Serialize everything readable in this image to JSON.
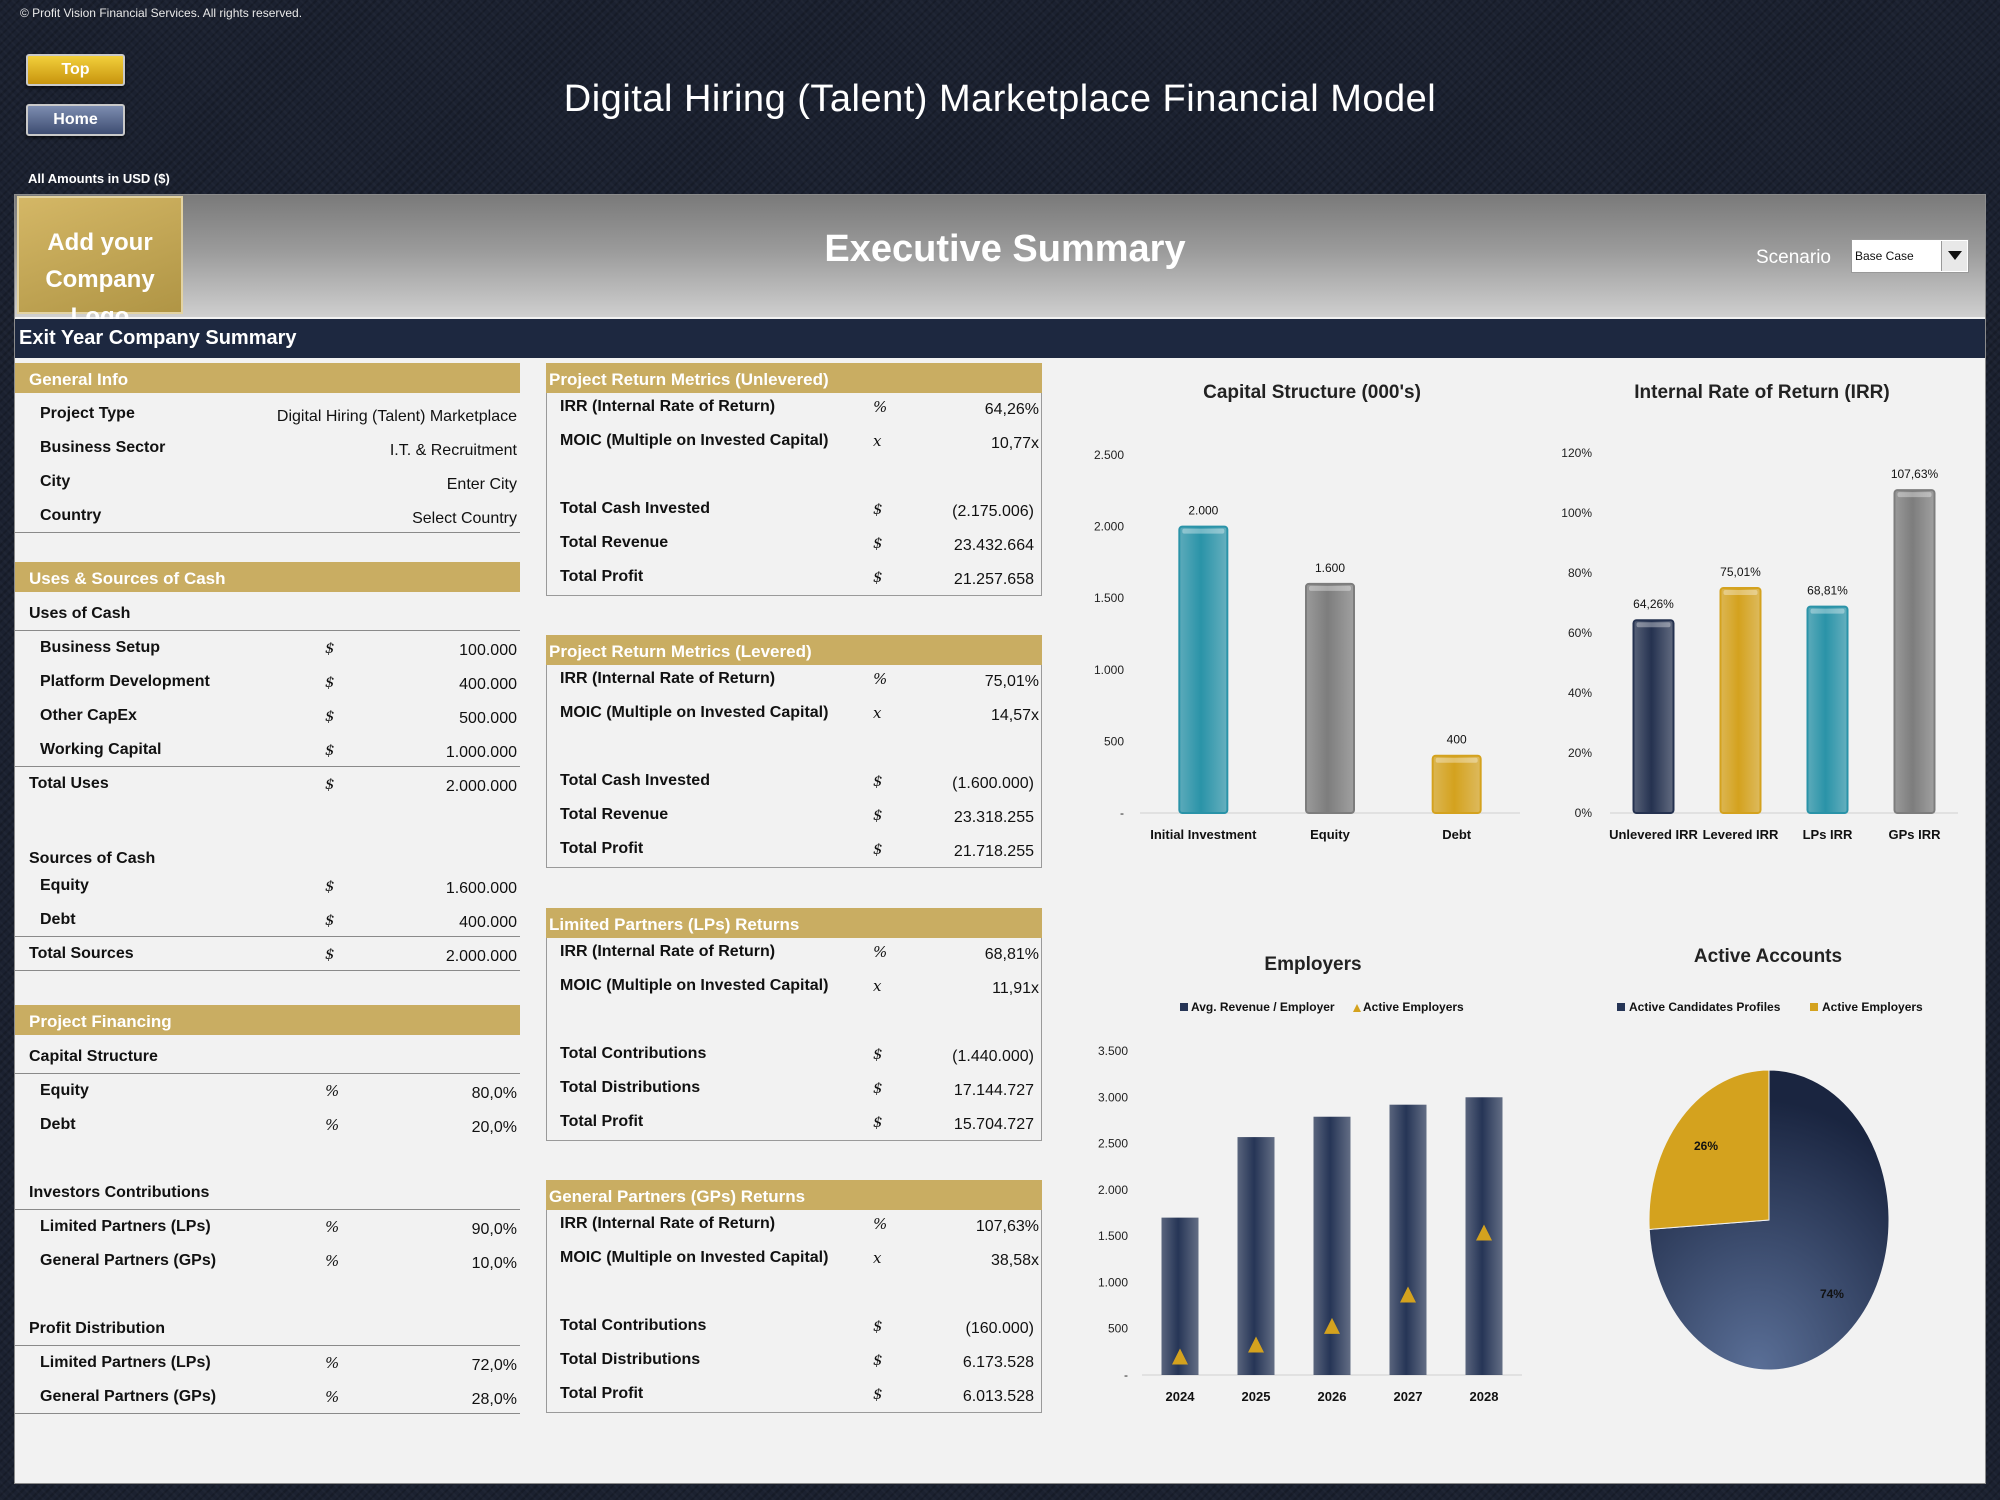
{
  "copyright": "© Profit Vision Financial Services. All rights reserved.",
  "nav": {
    "top_label": "Top",
    "home_label": "Home"
  },
  "title": "Digital Hiring (Talent) Marketplace Financial Model",
  "currency_note": "All Amounts in  USD ($)",
  "logo_text": [
    "Add your",
    "Company Logo"
  ],
  "section_title": "Executive Summary",
  "scenario": {
    "label": "Scenario",
    "value": "Base Case"
  },
  "exit_bar": "Exit Year Company Summary",
  "general_info": {
    "heading": "General Info",
    "rows": [
      {
        "label": "Project Type",
        "value": "Digital Hiring (Talent) Marketplace"
      },
      {
        "label": "Business Sector",
        "value": "I.T. & Recruitment"
      },
      {
        "label": "City",
        "value": "Enter City"
      },
      {
        "label": "Country",
        "value": "Select Country"
      }
    ]
  },
  "uses_sources": {
    "heading": "Uses & Sources of Cash",
    "uses_heading": "Uses of Cash",
    "uses": [
      {
        "label": "Business Setup",
        "unit": "$",
        "value": "100.000"
      },
      {
        "label": "Platform Development",
        "unit": "$",
        "value": "400.000"
      },
      {
        "label": "Other CapEx",
        "unit": "$",
        "value": "500.000"
      },
      {
        "label": "Working Capital",
        "unit": "$",
        "value": "1.000.000"
      }
    ],
    "total_uses": {
      "label": "Total Uses",
      "unit": "$",
      "value": "2.000.000"
    },
    "sources_heading": "Sources of Cash",
    "sources": [
      {
        "label": "Equity",
        "unit": "$",
        "value": "1.600.000"
      },
      {
        "label": "Debt",
        "unit": "$",
        "value": "400.000"
      }
    ],
    "total_sources": {
      "label": "Total Sources",
      "unit": "$",
      "value": "2.000.000"
    }
  },
  "project_financing": {
    "heading": "Project Financing",
    "capital_structure_heading": "Capital Structure",
    "capital_structure": [
      {
        "label": "Equity",
        "unit": "%",
        "value": "80,0%"
      },
      {
        "label": "Debt",
        "unit": "%",
        "value": "20,0%"
      }
    ],
    "investors_heading": "Investors Contributions",
    "investors": [
      {
        "label": "Limited Partners (LPs)",
        "unit": "%",
        "value": "90,0%"
      },
      {
        "label": "General Partners (GPs)",
        "unit": "%",
        "value": "10,0%"
      }
    ],
    "profit_heading": "Profit Distribution",
    "profit": [
      {
        "label": "Limited Partners (LPs)",
        "unit": "%",
        "value": "72,0%"
      },
      {
        "label": "General Partners (GPs)",
        "unit": "%",
        "value": "28,0%"
      }
    ]
  },
  "metrics": [
    {
      "heading": "Project Return Metrics (Unlevered)",
      "top": [
        {
          "label": "IRR (Internal Rate of Return)",
          "unit": "%",
          "value": "64,26%"
        },
        {
          "label": "MOIC (Multiple on Invested Capital)",
          "unit": "x",
          "value": "10,77x"
        }
      ],
      "bottom": [
        {
          "label": "Total Cash Invested",
          "unit": "$",
          "value": "(2.175.006)"
        },
        {
          "label": "Total Revenue",
          "unit": "$",
          "value": "23.432.664"
        },
        {
          "label": "Total Profit",
          "unit": "$",
          "value": "21.257.658"
        }
      ]
    },
    {
      "heading": "Project Return Metrics (Levered)",
      "top": [
        {
          "label": "IRR (Internal Rate of Return)",
          "unit": "%",
          "value": "75,01%"
        },
        {
          "label": "MOIC (Multiple on Invested Capital)",
          "unit": "x",
          "value": "14,57x"
        }
      ],
      "bottom": [
        {
          "label": "Total Cash Invested",
          "unit": "$",
          "value": "(1.600.000)"
        },
        {
          "label": "Total Revenue",
          "unit": "$",
          "value": "23.318.255"
        },
        {
          "label": "Total Profit",
          "unit": "$",
          "value": "21.718.255"
        }
      ]
    },
    {
      "heading": "Limited Partners (LPs) Returns",
      "top": [
        {
          "label": "IRR (Internal Rate of Return)",
          "unit": "%",
          "value": "68,81%"
        },
        {
          "label": "MOIC (Multiple on Invested Capital)",
          "unit": "x",
          "value": "11,91x"
        }
      ],
      "bottom": [
        {
          "label": "Total Contributions",
          "unit": "$",
          "value": "(1.440.000)"
        },
        {
          "label": "Total Distributions",
          "unit": "$",
          "value": "17.144.727"
        },
        {
          "label": "Total Profit",
          "unit": "$",
          "value": "15.704.727"
        }
      ]
    },
    {
      "heading": "General Partners (GPs) Returns",
      "top": [
        {
          "label": "IRR (Internal Rate of Return)",
          "unit": "%",
          "value": "107,63%"
        },
        {
          "label": "MOIC (Multiple on Invested Capital)",
          "unit": "x",
          "value": "38,58x"
        }
      ],
      "bottom": [
        {
          "label": "Total Contributions",
          "unit": "$",
          "value": "(160.000)"
        },
        {
          "label": "Total Distributions",
          "unit": "$",
          "value": "6.173.528"
        },
        {
          "label": "Total Profit",
          "unit": "$",
          "value": "6.013.528"
        }
      ]
    }
  ],
  "chart_data": [
    {
      "id": "capital",
      "type": "bar",
      "title": "Capital Structure (000's)",
      "categories": [
        "Initial Investment",
        "Equity",
        "Debt"
      ],
      "values": [
        2000,
        1600,
        400
      ],
      "data_labels": [
        "2.000",
        "1.600",
        "400"
      ],
      "colors": [
        "#2a93a8",
        "#7d7d7d",
        "#d4a21e"
      ],
      "ylim": [
        0,
        2500
      ],
      "yticks": [
        0,
        500,
        1000,
        1500,
        2000,
        2500
      ],
      "ytick_labels": [
        "-",
        "500",
        "1.000",
        "1.500",
        "2.000",
        "2.500"
      ]
    },
    {
      "id": "irr",
      "type": "bar",
      "title": "Internal Rate of Return (IRR)",
      "categories": [
        "Unlevered IRR",
        "Levered IRR",
        "LPs IRR",
        "GPs IRR"
      ],
      "values": [
        64.26,
        75.01,
        68.81,
        107.63
      ],
      "data_labels": [
        "64,26%",
        "75,01%",
        "68,81%",
        "107,63%"
      ],
      "colors": [
        "#253250",
        "#d4a21e",
        "#2a93a8",
        "#7d7d7d"
      ],
      "ylim": [
        0,
        120
      ],
      "yticks": [
        0,
        20,
        40,
        60,
        80,
        100,
        120
      ],
      "ytick_labels": [
        "0%",
        "20%",
        "40%",
        "60%",
        "80%",
        "100%",
        "120%"
      ]
    },
    {
      "id": "employers",
      "type": "bar",
      "title": "Employers",
      "categories": [
        "2024",
        "2025",
        "2026",
        "2027",
        "2028"
      ],
      "series": [
        {
          "name": "Avg. Revenue / Employer",
          "values": [
            1700,
            2570,
            2790,
            2920,
            3000
          ],
          "color": "#263556"
        },
        {
          "name": "Active Employers",
          "values": [
            200,
            330,
            530,
            870,
            1540
          ],
          "color": "#d4a21e"
        }
      ],
      "ylim": [
        0,
        3500
      ],
      "yticks": [
        0,
        500,
        1000,
        1500,
        2000,
        2500,
        3000,
        3500
      ],
      "ytick_labels": [
        "-",
        "500",
        "1.000",
        "1.500",
        "2.000",
        "2.500",
        "3.000",
        "3.500"
      ]
    },
    {
      "id": "accounts",
      "type": "pie",
      "title": "Active Accounts",
      "labels": [
        "Active Candidates Profiles",
        "Active Employers"
      ],
      "values": [
        74,
        26
      ],
      "data_labels": [
        "74%",
        "26%"
      ],
      "colors": [
        "#263556",
        "#d4a21e"
      ]
    }
  ]
}
